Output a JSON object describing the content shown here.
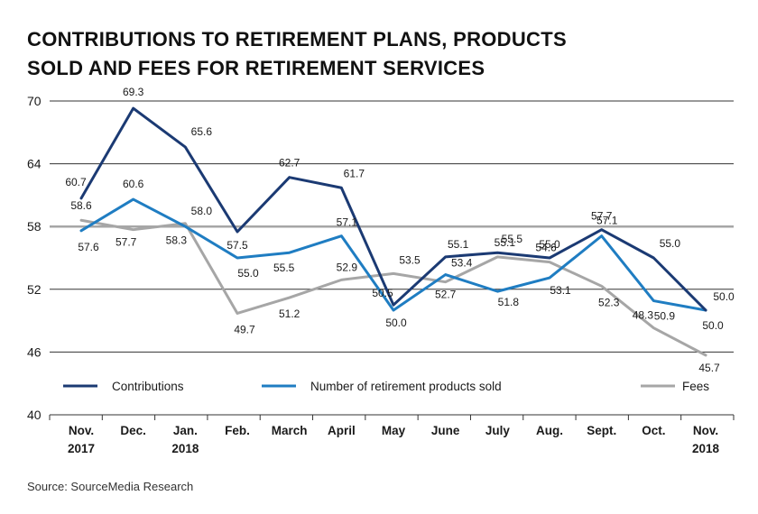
{
  "title_lines": [
    "CONTRIBUTIONS TO RETIREMENT PLANS, PRODUCTS",
    "SOLD AND FEES FOR RETIREMENT SERVICES"
  ],
  "source": "Source: SourceMedia Research",
  "colors": {
    "contributions": "#1b3a73",
    "products": "#1f7dc2",
    "fees": "#a6a6a6",
    "reference_line": "#a6a6a6",
    "grid": "#333333",
    "text": "#1a1a1a"
  },
  "chart_data": {
    "type": "line",
    "title": "CONTRIBUTIONS TO RETIREMENT PLANS, PRODUCTS SOLD AND FEES FOR RETIREMENT SERVICES",
    "xlabel": "",
    "ylabel": "",
    "ylim": [
      40,
      70
    ],
    "yticks": [
      40,
      46,
      52,
      58,
      64,
      70
    ],
    "reference_line": 58,
    "categories": [
      [
        "Nov.",
        "2017"
      ],
      [
        "Dec."
      ],
      [
        "Jan.",
        "2018"
      ],
      [
        "Feb."
      ],
      [
        "March"
      ],
      [
        "April"
      ],
      [
        "May"
      ],
      [
        "June"
      ],
      [
        "July"
      ],
      [
        "Aug."
      ],
      [
        "Sept."
      ],
      [
        "Oct."
      ],
      [
        "Nov.",
        "2018"
      ]
    ],
    "series": [
      {
        "name": "Contributions",
        "key": "contributions",
        "values": [
          60.7,
          69.3,
          65.6,
          57.5,
          62.7,
          61.7,
          50.5,
          55.1,
          55.5,
          55.0,
          57.7,
          55.0,
          50.0
        ],
        "labels": [
          "60.7",
          "69.3",
          "65.6",
          "57.5",
          "62.7",
          "61.7",
          "50.5",
          "55.1",
          "55.5",
          "55.0",
          "57.7",
          "55.0",
          "50.0"
        ]
      },
      {
        "name": "Number of retirement products sold",
        "key": "products",
        "values": [
          57.6,
          60.6,
          58.0,
          55.0,
          55.5,
          57.1,
          50.0,
          53.4,
          51.8,
          53.1,
          57.1,
          50.9,
          50.0
        ],
        "labels": [
          "57.6",
          "60.6",
          "58.0",
          "55.0",
          "55.5",
          "57.1",
          "50.0",
          "53.4",
          "51.8",
          "53.1",
          "57.1",
          "50.9",
          "50.0"
        ]
      },
      {
        "name": "Fees",
        "key": "fees",
        "values": [
          58.6,
          57.7,
          58.3,
          49.7,
          51.2,
          52.9,
          53.5,
          52.7,
          55.1,
          54.6,
          52.3,
          48.3,
          45.7
        ],
        "labels": [
          "58.6",
          "57.7",
          "58.3",
          "49.7",
          "51.2",
          "52.9",
          "53.5",
          "52.7",
          "55.1",
          "54.6",
          "52.3",
          "48.3",
          "45.7"
        ]
      }
    ]
  }
}
